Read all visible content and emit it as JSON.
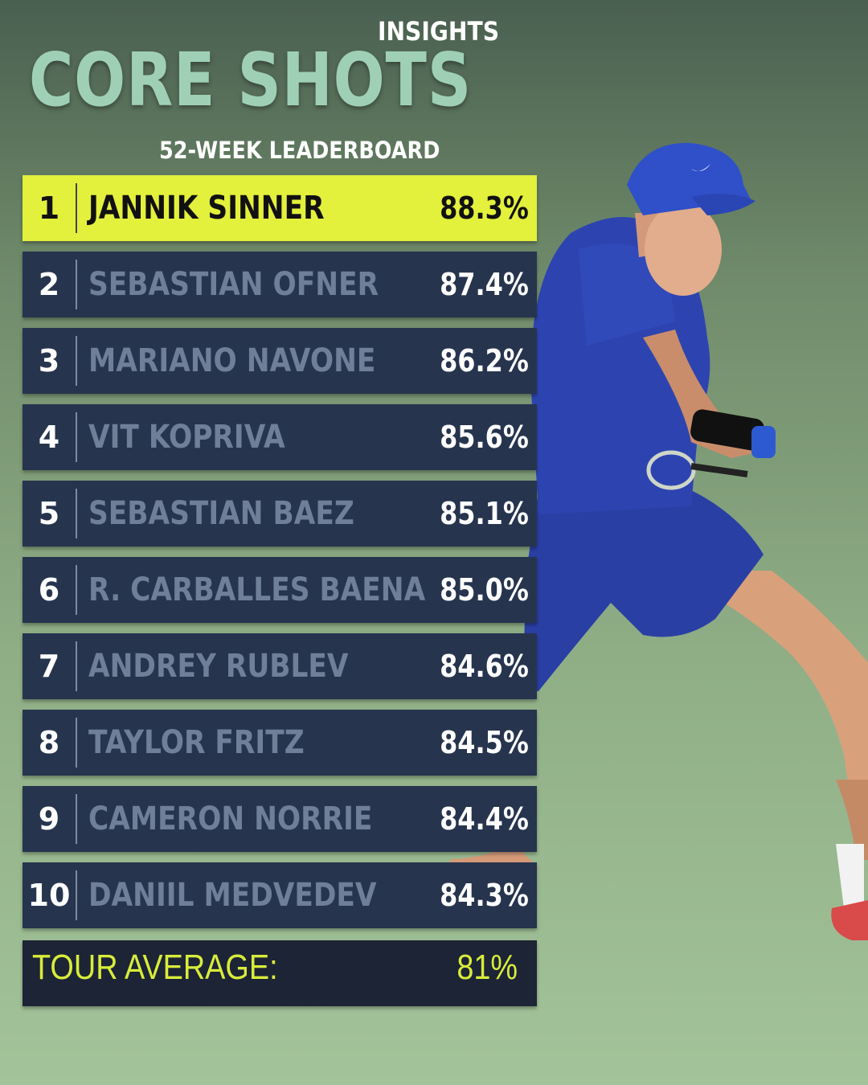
{
  "header": {
    "kicker": "INSIGHTS",
    "title": "CORE SHOTS",
    "subtitle": "52-WEEK LEADERBOARD"
  },
  "leaderboard": [
    {
      "rank": "1",
      "name": "JANNIK SINNER",
      "pct": "88.3%"
    },
    {
      "rank": "2",
      "name": "SEBASTIAN OFNER",
      "pct": "87.4%"
    },
    {
      "rank": "3",
      "name": "MARIANO NAVONE",
      "pct": "86.2%"
    },
    {
      "rank": "4",
      "name": "VIT KOPRIVA",
      "pct": "85.6%"
    },
    {
      "rank": "5",
      "name": "SEBASTIAN BAEZ",
      "pct": "85.1%"
    },
    {
      "rank": "6",
      "name": "R. CARBALLES BAENA",
      "pct": "85.0%"
    },
    {
      "rank": "7",
      "name": "ANDREY RUBLEV",
      "pct": "84.6%"
    },
    {
      "rank": "8",
      "name": "TAYLOR FRITZ",
      "pct": "84.5%"
    },
    {
      "rank": "9",
      "name": "CAMERON NORRIE",
      "pct": "84.4%"
    },
    {
      "rank": "10",
      "name": "DANIIL MEDVEDEV",
      "pct": "84.3%"
    }
  ],
  "tour_average": {
    "label": "TOUR AVERAGE:",
    "value": "81%"
  },
  "colors": {
    "highlight": "#e3f03c",
    "row": "#27344e",
    "title": "#9fd0b6",
    "average": "#d9ec3a"
  },
  "icons": {
    "player_image": "tennis-player-photo",
    "brand_mark": "swoosh-logo"
  }
}
